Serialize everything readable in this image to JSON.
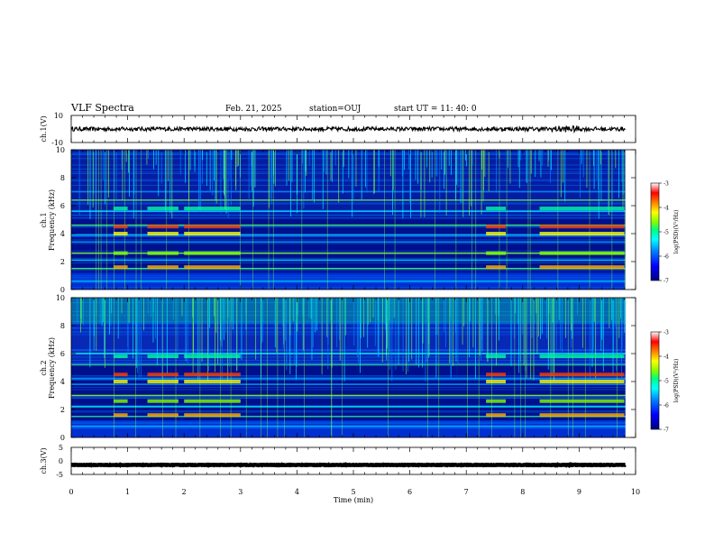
{
  "header": {
    "title": "VLF Spectra",
    "date": "Feb. 21, 2025",
    "station": "station=OUJ",
    "start": "start  UT =   11: 40: 0"
  },
  "colors": {
    "spectrogram_background": "#00108c",
    "colormap": [
      "#000080",
      "#0000ff",
      "#0080ff",
      "#00ffff",
      "#00ff80",
      "#80ff00",
      "#ffff00",
      "#ff8000",
      "#ff0000",
      "#ffffff"
    ]
  },
  "chart_data": [
    {
      "type": "line",
      "name": "ch1-waveform",
      "ylabel": "ch.1(V)",
      "ylim": [
        -10,
        10
      ],
      "yticks": [
        "10",
        "-10"
      ],
      "xlim": [
        0,
        10
      ],
      "trace_level": 0,
      "trace_amplitude": 1.5,
      "color": "#000000"
    },
    {
      "type": "heatmap",
      "name": "ch1-spectrogram",
      "ylabel_top": "ch.1",
      "ylabel": "Frequency (kHz)",
      "ylim": [
        0,
        10
      ],
      "yticks": [
        "0",
        "2",
        "4",
        "6",
        "8",
        "10"
      ],
      "xlim": [
        0,
        10
      ],
      "colorbar": {
        "label": "log(PSD)(V²/Hz)",
        "ticks": [
          "-3",
          "-4",
          "-5",
          "-6",
          "-7"
        ],
        "range": [
          -7,
          -3
        ]
      },
      "bright_bands_khz": [
        0.6,
        1.5,
        2.1,
        2.6,
        3.4,
        3.9,
        4.6,
        5.6,
        6.4,
        7.0
      ],
      "bursts_min": [
        [
          0.75,
          1.0
        ],
        [
          1.35,
          1.9
        ],
        [
          2.0,
          3.0
        ],
        [
          7.35,
          7.7
        ],
        [
          8.3,
          9.8
        ]
      ]
    },
    {
      "type": "heatmap",
      "name": "ch2-spectrogram",
      "ylabel_top": "ch.2",
      "ylabel": "Frequency (kHz)",
      "ylim": [
        0,
        10
      ],
      "yticks": [
        "0",
        "2",
        "4",
        "6",
        "8",
        "10"
      ],
      "xlim": [
        0,
        10
      ],
      "colorbar": {
        "label": "log(PSD)(V²/Hz)",
        "ticks": [
          "-3",
          "-4",
          "-5",
          "-6",
          "-7"
        ],
        "range": [
          -7,
          -3
        ]
      },
      "bright_bands_khz": [
        0.8,
        1.5,
        2.2,
        3.0,
        3.8,
        4.2,
        5.2,
        6.0
      ],
      "bursts_min": [
        [
          0.75,
          1.0
        ],
        [
          1.35,
          1.9
        ],
        [
          2.0,
          3.0
        ],
        [
          7.35,
          7.7
        ],
        [
          8.3,
          9.8
        ]
      ]
    },
    {
      "type": "line",
      "name": "ch3-waveform",
      "ylabel": "ch.3(V)",
      "ylim": [
        -5,
        5
      ],
      "yticks": [
        "5",
        "0",
        "-5"
      ],
      "xlim": [
        0,
        10
      ],
      "trace_level": -1.5,
      "trace_amplitude": 0.1,
      "color": "#000000"
    }
  ],
  "xaxis": {
    "label": "Time  (min)",
    "ticks": [
      "0",
      "1",
      "2",
      "3",
      "4",
      "5",
      "6",
      "7",
      "8",
      "9",
      "10"
    ],
    "range": [
      0,
      10
    ]
  }
}
